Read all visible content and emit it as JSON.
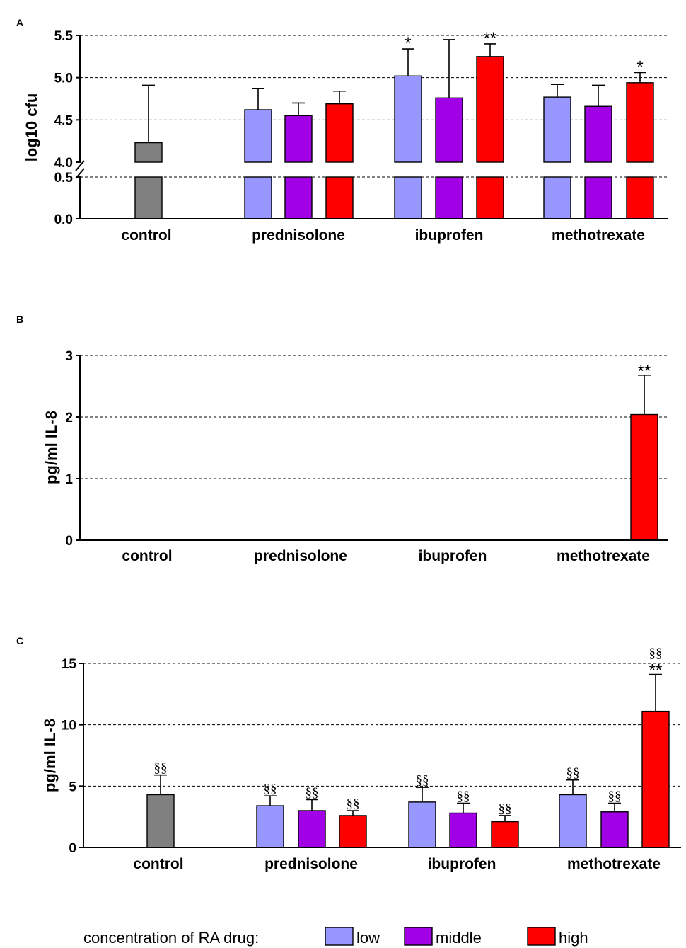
{
  "legend": {
    "title": "concentration of RA drug:",
    "items": [
      {
        "key": "low",
        "label": "low",
        "color": "#9896ff"
      },
      {
        "key": "middle",
        "label": "middle",
        "color": "#a100e6"
      },
      {
        "key": "high",
        "label": "high",
        "color": "#ff0000"
      }
    ]
  },
  "chart_data": [
    {
      "panel": "A",
      "type": "bar",
      "ylabel": "log10 cfu",
      "xlabel": "",
      "axis_break": {
        "lower": [
          0,
          0.5
        ],
        "upper": [
          4.0,
          5.5
        ]
      },
      "yticks_lower": [
        "0.0",
        "0.5"
      ],
      "yticks_upper": [
        "4.0",
        "4.5",
        "5.0",
        "5.5"
      ],
      "grid": "horizontal dashed at 0.5, 4.5, 5.0, 5.5",
      "categories": [
        "control",
        "prednisolone",
        "ibuprofen",
        "methotrexate"
      ],
      "bars": [
        {
          "category": "control",
          "series": "control",
          "color": "#808080",
          "value": 4.23,
          "error": 0.68,
          "mark": ""
        },
        {
          "category": "prednisolone",
          "series": "low",
          "value": 4.62,
          "error": 0.25,
          "mark": ""
        },
        {
          "category": "prednisolone",
          "series": "middle",
          "value": 4.55,
          "error": 0.15,
          "mark": ""
        },
        {
          "category": "prednisolone",
          "series": "high",
          "value": 4.69,
          "error": 0.15,
          "mark": ""
        },
        {
          "category": "ibuprofen",
          "series": "low",
          "value": 5.02,
          "error": 0.32,
          "mark": "*"
        },
        {
          "category": "ibuprofen",
          "series": "middle",
          "value": 4.76,
          "error": 0.69,
          "mark": ""
        },
        {
          "category": "ibuprofen",
          "series": "high",
          "value": 5.25,
          "error": 0.15,
          "mark": "**"
        },
        {
          "category": "methotrexate",
          "series": "low",
          "value": 4.77,
          "error": 0.15,
          "mark": ""
        },
        {
          "category": "methotrexate",
          "series": "middle",
          "value": 4.66,
          "error": 0.25,
          "mark": ""
        },
        {
          "category": "methotrexate",
          "series": "high",
          "value": 4.94,
          "error": 0.12,
          "mark": "*"
        }
      ]
    },
    {
      "panel": "B",
      "type": "bar",
      "ylabel": "pg/ml IL-8",
      "xlabel": "",
      "ylim": [
        0,
        3
      ],
      "yticks": [
        "0",
        "1",
        "2",
        "3"
      ],
      "grid": "horizontal dashed at 1, 2, 3",
      "categories": [
        "control",
        "prednisolone",
        "ibuprofen",
        "methotrexate"
      ],
      "bars": [
        {
          "category": "methotrexate",
          "series": "high",
          "value": 2.04,
          "error": 0.64,
          "mark": "**"
        }
      ]
    },
    {
      "panel": "C",
      "type": "bar",
      "ylabel": "pg/ml IL-8",
      "xlabel": "",
      "ylim": [
        0,
        15
      ],
      "yticks": [
        "0",
        "5",
        "10",
        "15"
      ],
      "grid": "horizontal dashed at 5, 10, 15",
      "categories": [
        "control",
        "prednisolone",
        "ibuprofen",
        "methotrexate"
      ],
      "bars": [
        {
          "category": "control",
          "series": "control",
          "color": "#808080",
          "value": 4.3,
          "error": 1.6,
          "mark": "§§"
        },
        {
          "category": "prednisolone",
          "series": "low",
          "value": 3.4,
          "error": 0.8,
          "mark": "§§"
        },
        {
          "category": "prednisolone",
          "series": "middle",
          "value": 3.0,
          "error": 0.9,
          "mark": "§§"
        },
        {
          "category": "prednisolone",
          "series": "high",
          "value": 2.6,
          "error": 0.4,
          "mark": "§§"
        },
        {
          "category": "ibuprofen",
          "series": "low",
          "value": 3.7,
          "error": 1.2,
          "mark": "§§"
        },
        {
          "category": "ibuprofen",
          "series": "middle",
          "value": 2.8,
          "error": 0.8,
          "mark": "§§"
        },
        {
          "category": "ibuprofen",
          "series": "high",
          "value": 2.1,
          "error": 0.5,
          "mark": "§§"
        },
        {
          "category": "methotrexate",
          "series": "low",
          "value": 4.3,
          "error": 1.2,
          "mark": "§§"
        },
        {
          "category": "methotrexate",
          "series": "middle",
          "value": 2.9,
          "error": 0.7,
          "mark": "§§"
        },
        {
          "category": "methotrexate",
          "series": "high",
          "value": 11.1,
          "error": 3.0,
          "mark": "**",
          "mark2": "§§"
        }
      ]
    }
  ]
}
